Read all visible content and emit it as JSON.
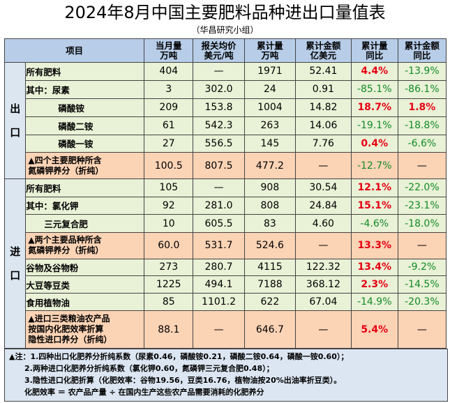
{
  "title": "2024年8月中国主要肥料品种进出口量值表",
  "subtitle": "（华昌研究小组）",
  "header": {
    "item": "项目",
    "c1": [
      "当月量",
      "万吨"
    ],
    "c2": [
      "报关均价",
      "美元/吨"
    ],
    "c3": [
      "累计量",
      "万吨"
    ],
    "c4": [
      "累计金额",
      "亿美元"
    ],
    "c5": [
      "累计量",
      "同比"
    ],
    "c6": [
      "累计金额",
      "同比"
    ]
  },
  "export_label": [
    "出",
    "口"
  ],
  "import_label": [
    "进",
    "口"
  ],
  "export_rows": [
    {
      "name": "所有肥料",
      "v": [
        "404",
        "—",
        "1971",
        "52.41",
        "4.4%",
        "-13.9%"
      ]
    },
    {
      "name": "其中：尿素",
      "v": [
        "3",
        "302.0",
        "24",
        "0.91",
        "-85.1%",
        "-86.1%"
      ]
    },
    {
      "name": "磷酸铵",
      "v": [
        "209",
        "153.8",
        "1004",
        "14.82",
        "18.7%",
        "1.8%"
      ]
    },
    {
      "name": "磷酸二铵",
      "v": [
        "61",
        "542.3",
        "263",
        "14.06",
        "-19.1%",
        "-18.8%"
      ]
    },
    {
      "name": "磷酸一铵",
      "v": [
        "27",
        "556.5",
        "145",
        "7.76",
        "0.4%",
        "-6.6%"
      ]
    },
    {
      "name": [
        "▲四个主要肥种所含",
        "氮磷钾养分（折纯）"
      ],
      "v": [
        "100.5",
        "807.5",
        "477.2",
        "—",
        "-12.7%",
        "—"
      ]
    }
  ],
  "import_rows": [
    {
      "name": "所有肥料",
      "v": [
        "105",
        "—",
        "908",
        "30.54",
        "12.1%",
        "-22.0%"
      ]
    },
    {
      "name": "其中：氯化钾",
      "v": [
        "92",
        "281.0",
        "808",
        "24.84",
        "15.1%",
        "-23.1%"
      ]
    },
    {
      "name": "三元复合肥",
      "v": [
        "10",
        "605.5",
        "83",
        "4.60",
        "-4.6%",
        "-18.0%"
      ]
    },
    {
      "name": [
        "▲两个主要品种所含",
        "氮磷钾养分（折纯）"
      ],
      "v": [
        "60.0",
        "531.7",
        "524.6",
        "—",
        "13.3%",
        "—"
      ]
    },
    {
      "name": "谷物及谷物粉",
      "v": [
        "273",
        "280.7",
        "4115",
        "122.32",
        "13.4%",
        "-9.2%"
      ]
    },
    {
      "name": "大豆等豆类",
      "v": [
        "1225",
        "494.1",
        "7188",
        "368.12",
        "2.3%",
        "-14.5%"
      ]
    },
    {
      "name": "食用植物油",
      "v": [
        "85",
        "1101.2",
        "622",
        "67.04",
        "-14.9%",
        "-20.3%"
      ]
    },
    {
      "name": [
        "▲进口三类粮油农产品",
        "按国内化肥效率折算",
        "隐性进口养分（折纯）"
      ],
      "v": [
        "88.1",
        "—",
        "646.7",
        "—",
        "5.4%",
        "—"
      ]
    }
  ],
  "notes": [
    "▲注：1.四种出口化肥养分折纯系数（尿素0.46，磷酸铵0.21，磷酸二铵0.64，磷酸一铵0.60）；",
    "2.两种进口化肥养分折纯系数（氯化钾0.60，氮磷钾三元复合肥0.48）；",
    "3.隐性进口化肥折算（化肥效率：谷物19.56，豆类16.76，植物油按20%出油率折豆类）。",
    "化肥效率 ＝ 农产品产量 ÷ 在国内生产这些农产品需要消耗的化肥养分"
  ],
  "colors": {
    "header_bg": "#b7cde8",
    "section_bg": "#dbe6f1",
    "green_row": "#e9f1d6",
    "orange_row": "#fbd3b5",
    "positive_text": "#e60012",
    "negative_text": "#128a28"
  }
}
